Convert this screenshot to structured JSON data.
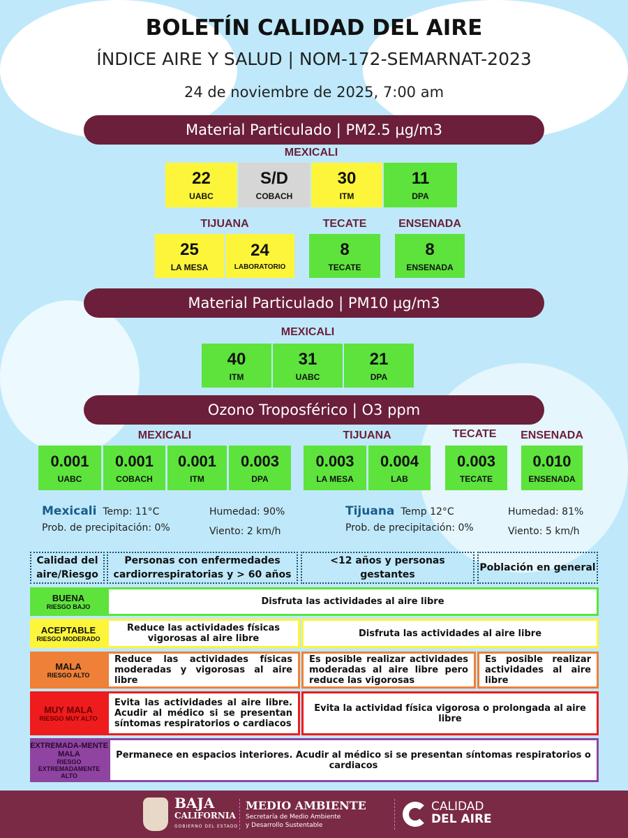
{
  "header": {
    "title": "BOLETÍN CALIDAD DEL AIRE",
    "subtitle": "ÍNDICE AIRE Y SALUD  | NOM-172-SEMARNAT-2023",
    "date": "24 de noviembre de 2025, 7:00 am"
  },
  "pm25": {
    "banner": "Material Particulado  | PM2.5  µg/m3",
    "mexicali": {
      "label": "MEXICALI",
      "stations": [
        {
          "value": "22",
          "name": "UABC",
          "color": "#fdf53a"
        },
        {
          "value": "S/D",
          "name": "COBACH",
          "color": "#d6d6d6"
        },
        {
          "value": "30",
          "name": "ITM",
          "color": "#fdf53a"
        },
        {
          "value": "11",
          "name": "DPA",
          "color": "#5de33c"
        }
      ]
    },
    "tijuana": {
      "label": "TIJUANA",
      "stations": [
        {
          "value": "25",
          "name": "LA MESA"
        },
        {
          "value": "24",
          "name": "LABORATORIO"
        }
      ]
    },
    "tecate": {
      "label": "TECATE",
      "stations": [
        {
          "value": "8",
          "name": "TECATE"
        }
      ]
    },
    "ensenada": {
      "label": "ENSENADA",
      "stations": [
        {
          "value": "8",
          "name": "ENSENADA"
        }
      ]
    }
  },
  "pm10": {
    "banner": "Material Particulado  | PM10  µg/m3",
    "mexicali": {
      "label": "MEXICALI",
      "stations": [
        {
          "value": "40",
          "name": "ITM"
        },
        {
          "value": "31",
          "name": "UABC"
        },
        {
          "value": "21",
          "name": "DPA"
        }
      ]
    }
  },
  "o3": {
    "banner": "Ozono Troposférico  | O3  ppm",
    "mexicali": {
      "label": "MEXICALI",
      "stations": [
        {
          "value": "0.001",
          "name": "UABC"
        },
        {
          "value": "0.001",
          "name": "COBACH"
        },
        {
          "value": "0.001",
          "name": "ITM"
        },
        {
          "value": "0.003",
          "name": "DPA"
        }
      ]
    },
    "tijuana": {
      "label": "TIJUANA",
      "stations": [
        {
          "value": "0.003",
          "name": "LA MESA"
        },
        {
          "value": "0.004",
          "name": "LAB"
        }
      ]
    },
    "tecate": {
      "label": "TECATE",
      "stations": [
        {
          "value": "0.003",
          "name": "TECATE"
        }
      ]
    },
    "ensenada": {
      "label": "ENSENADA",
      "stations": [
        {
          "value": "0.010",
          "name": "ENSENADA"
        }
      ]
    }
  },
  "weather": {
    "mexicali": {
      "city": "Mexicali",
      "temp": "Temp:  11°C",
      "humidity": "Humedad: 90%",
      "precip": "Prob. de precipitación:  0%",
      "wind": "Viento: 2 km/h"
    },
    "tijuana": {
      "city": "Tijuana",
      "temp": "Temp 12°C",
      "humidity": "Humedad: 81%",
      "precip": "Prob. de precipitación: 0%",
      "wind": "Viento:  5 km/h"
    }
  },
  "table": {
    "headers": [
      "Calidad del aire/Riesgo",
      "Personas con enfermedades cardiorrespiratorias y > 60 años",
      "<12 años y personas gestantes",
      "Población en general"
    ],
    "rows": [
      {
        "level": "BUENA",
        "risk": "RIESGO BAJO",
        "color": "#5de33c",
        "cells": [
          "Disfruta las actividades al aire libre"
        ]
      },
      {
        "level": "ACEPTABLE",
        "risk": "RIESGO MODERADO",
        "color": "#fdf53a",
        "cells": [
          "Reduce las actividades físicas vigorosas al aire libre",
          "Disfruta las actividades al aire libre"
        ]
      },
      {
        "level": "MALA",
        "risk": "RIESGO ALTO",
        "color": "#ee8038",
        "cells": [
          "Reduce las actividades físicas moderadas y vigorosas al aire libre",
          "Es posible realizar actividades moderadas al aire libre pero reduce las vigorosas",
          "Es posible realizar actividades al aire libre"
        ]
      },
      {
        "level": "MUY MALA",
        "risk": "RIESGO MUY ALTO",
        "color": "#ee1c1c",
        "cells": [
          "Evita las actividades al aire libre. Acudir al médico si se presentan síntomas respiratorios o cardiacos",
          "Evita la actividad física vigorosa o prolongada al aire libre"
        ]
      },
      {
        "level": "EXTREMADA-MENTE MALA",
        "risk": "RIESGO EXTREMADAMENTE ALTO",
        "color": "#8e44a0",
        "cells": [
          "Permanece en espacios interiores. Acudir al médico si se presentan síntomas respiratorios o cardiacos"
        ]
      }
    ]
  },
  "footer": {
    "bc_title": "BAJA",
    "bc_sub": "CALIFORNIA",
    "bc_gov": "GOBIERNO DEL ESTADO",
    "ma_title": "MEDIO AMBIENTE",
    "ma_sub1": "Secretaría de Medio Ambiente",
    "ma_sub2": "y Desarrollo Sustentable",
    "ca_1": "CALIDAD",
    "ca_2": "DEL AIRE"
  }
}
